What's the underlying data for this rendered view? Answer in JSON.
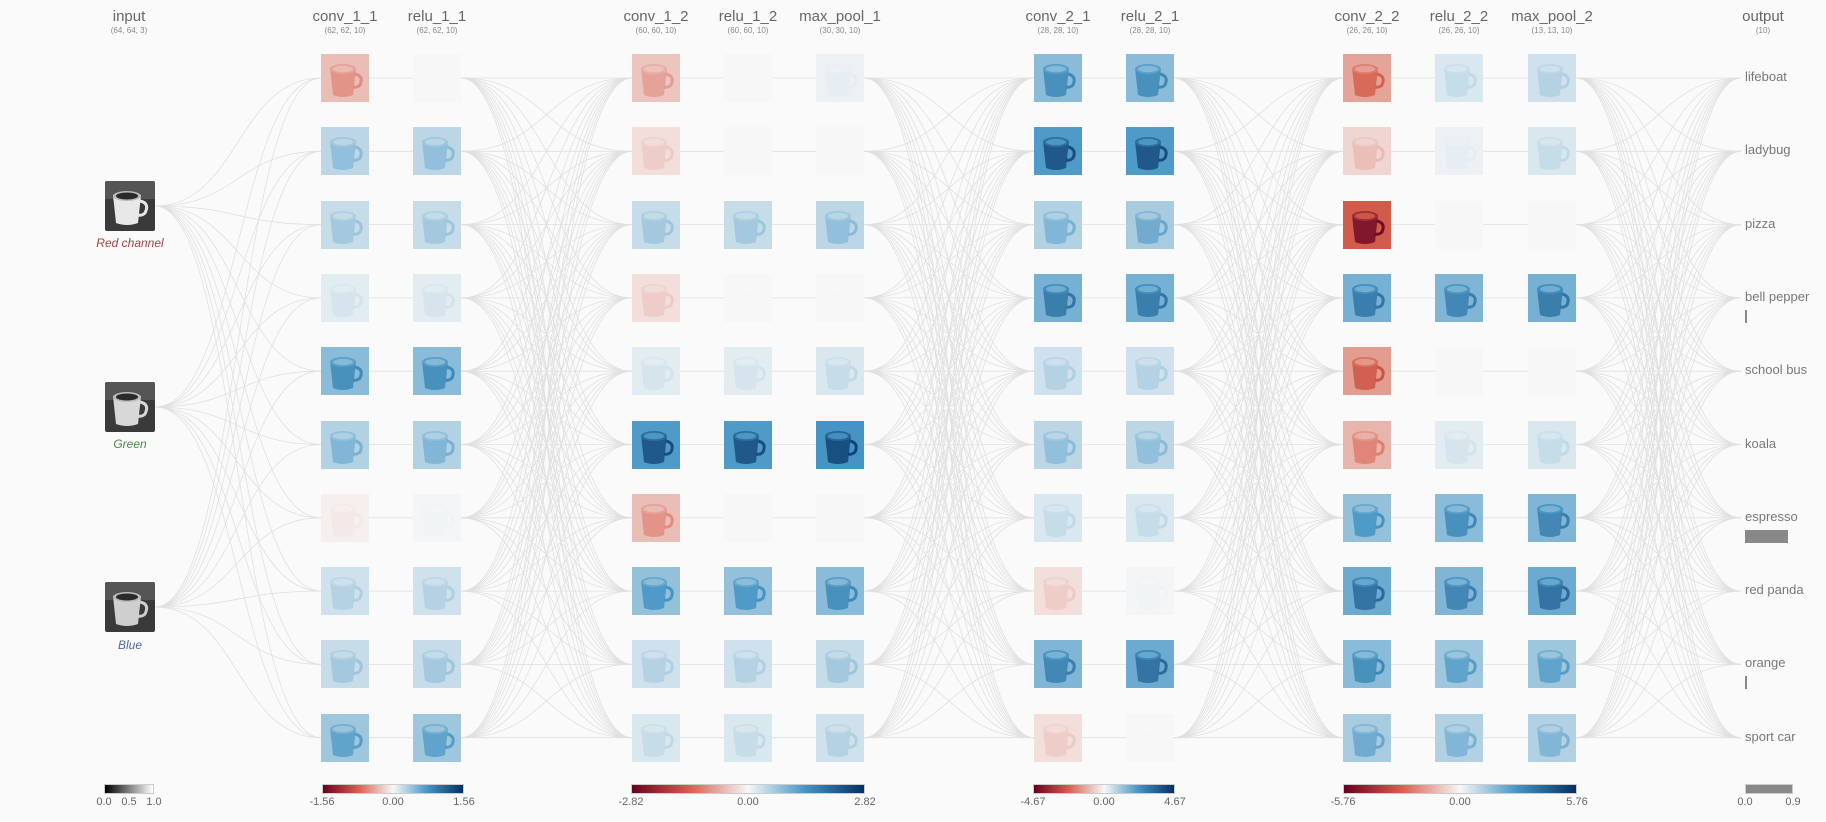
{
  "input": {
    "title": "input",
    "dims": "(64, 64, 3)",
    "channels": [
      {
        "label": "Red channel",
        "color": "#a04545"
      },
      {
        "label": "Green",
        "color": "#4a8a4a"
      },
      {
        "label": "Blue",
        "color": "#4a6aa0"
      }
    ]
  },
  "layers": [
    {
      "title": "conv_1_1",
      "dims": "(62, 62, 10)",
      "activations": [
        -0.35,
        0.3,
        0.25,
        0.1,
        0.55,
        0.35,
        -0.05,
        0.2,
        0.25,
        0.45
      ]
    },
    {
      "title": "relu_1_1",
      "dims": "(62, 62, 10)",
      "activations": [
        0,
        0.3,
        0.25,
        0.1,
        0.55,
        0.35,
        0.02,
        0.2,
        0.25,
        0.45
      ]
    },
    {
      "title": "conv_1_2",
      "dims": "(60, 60, 10)",
      "activations": [
        -0.3,
        -0.15,
        0.25,
        -0.15,
        0.1,
        0.85,
        -0.35,
        0.5,
        0.2,
        0.15
      ]
    },
    {
      "title": "relu_1_2",
      "dims": "(60, 60, 10)",
      "activations": [
        0,
        0,
        0.25,
        0,
        0.1,
        0.85,
        0,
        0.5,
        0.2,
        0.15
      ]
    },
    {
      "title": "max_pool_1",
      "dims": "(30, 30, 10)",
      "activations": [
        0.05,
        0,
        0.3,
        0,
        0.15,
        0.9,
        0,
        0.55,
        0.25,
        0.2
      ]
    },
    {
      "title": "conv_2_1",
      "dims": "(28, 28, 10)",
      "activations": [
        0.55,
        0.85,
        0.35,
        0.65,
        0.2,
        0.3,
        0.15,
        -0.15,
        0.6,
        -0.15
      ]
    },
    {
      "title": "relu_2_1",
      "dims": "(28, 28, 10)",
      "activations": [
        0.55,
        0.85,
        0.4,
        0.65,
        0.2,
        0.3,
        0.15,
        0.02,
        0.7,
        0
      ]
    },
    {
      "title": "conv_2_2",
      "dims": "(26, 26, 10)",
      "activations": [
        -0.5,
        -0.2,
        -0.95,
        0.65,
        -0.55,
        -0.4,
        0.5,
        0.7,
        0.55,
        0.4
      ]
    },
    {
      "title": "relu_2_2",
      "dims": "(26, 26, 10)",
      "activations": [
        0.15,
        0.05,
        0,
        0.6,
        0,
        0.1,
        0.55,
        0.6,
        0.45,
        0.35
      ]
    },
    {
      "title": "max_pool_2",
      "dims": "(13, 13, 10)",
      "activations": [
        0.2,
        0.15,
        0,
        0.65,
        0,
        0.15,
        0.6,
        0.7,
        0.45,
        0.35
      ]
    }
  ],
  "output": {
    "title": "output",
    "dims": "(10)",
    "classes": [
      {
        "label": "lifeboat",
        "score": 0.0
      },
      {
        "label": "ladybug",
        "score": 0.0
      },
      {
        "label": "pizza",
        "score": 0.0
      },
      {
        "label": "bell pepper",
        "score": 0.01
      },
      {
        "label": "school bus",
        "score": 0.0
      },
      {
        "label": "koala",
        "score": 0.0
      },
      {
        "label": "espresso",
        "score": 0.8
      },
      {
        "label": "red panda",
        "score": 0.0
      },
      {
        "label": "orange",
        "score": 0.02
      },
      {
        "label": "sport car",
        "score": 0.0
      }
    ]
  },
  "scales": [
    {
      "ticks": [
        "0.0",
        "0.5",
        "1.0"
      ],
      "type": "gray"
    },
    {
      "ticks": [
        "-1.56",
        "0.00",
        "1.56"
      ],
      "type": "diverging"
    },
    {
      "ticks": [
        "-2.82",
        "0.00",
        "2.82"
      ],
      "type": "diverging"
    },
    {
      "ticks": [
        "-4.67",
        "0.00",
        "4.67"
      ],
      "type": "diverging"
    },
    {
      "ticks": [
        "-5.76",
        "0.00",
        "5.76"
      ],
      "type": "diverging"
    },
    {
      "ticks": [
        "0.0",
        "0.9"
      ],
      "type": "output"
    }
  ],
  "colors": {
    "negative_strong": "#67001f",
    "negative_mid": "#d6604d",
    "neutral": "#f7f7f7",
    "positive_mid": "#4393c3",
    "positive_strong": "#053061",
    "link": "#e0e0e0",
    "output_bar": "#888888"
  }
}
